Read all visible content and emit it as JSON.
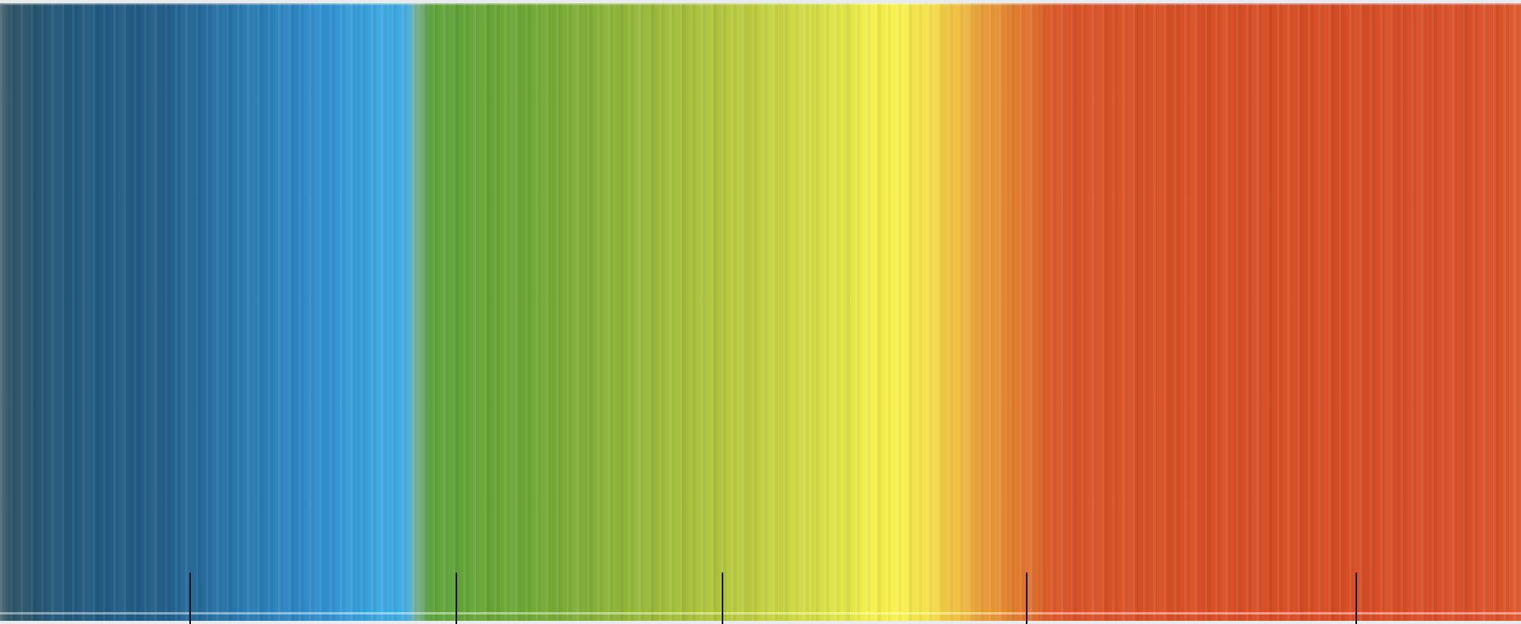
{
  "spectrum": {
    "bands": [
      {
        "name": "dark-blue-band",
        "from": "#2c4c5e",
        "to": "#1f5a7f"
      },
      {
        "name": "blue-band",
        "from": "#236b9c",
        "to": "#3fa8e2"
      },
      {
        "name": "green-band",
        "from": "#55a139",
        "to": "#9ebd3b"
      },
      {
        "name": "yellow-green-band",
        "from": "#a8c23c",
        "to": "#e6e94a"
      },
      {
        "name": "yellow-band",
        "from": "#eeec4a",
        "to": "#f8f04e"
      },
      {
        "name": "orange-band",
        "from": "#f2c646",
        "to": "#e0702d"
      },
      {
        "name": "red-orange-band",
        "from": "#d95429",
        "to": "#d94f27"
      }
    ],
    "tick_count": 5
  }
}
